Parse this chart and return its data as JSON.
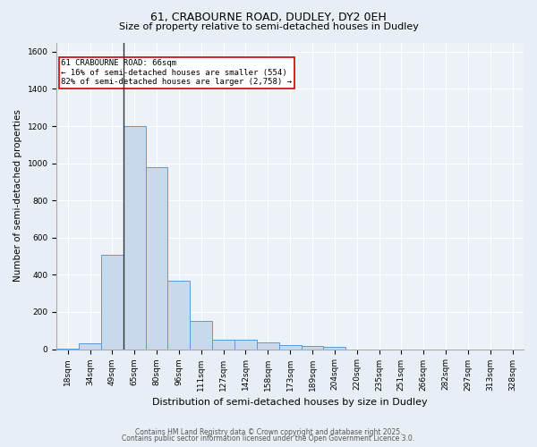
{
  "title1": "61, CRABOURNE ROAD, DUDLEY, DY2 0EH",
  "title2": "Size of property relative to semi-detached houses in Dudley",
  "xlabel": "Distribution of semi-detached houses by size in Dudley",
  "ylabel": "Number of semi-detached properties",
  "categories": [
    "18sqm",
    "34sqm",
    "49sqm",
    "65sqm",
    "80sqm",
    "96sqm",
    "111sqm",
    "127sqm",
    "142sqm",
    "158sqm",
    "173sqm",
    "189sqm",
    "204sqm",
    "220sqm",
    "235sqm",
    "251sqm",
    "266sqm",
    "282sqm",
    "297sqm",
    "313sqm",
    "328sqm"
  ],
  "values": [
    5,
    30,
    510,
    1200,
    980,
    370,
    150,
    50,
    50,
    35,
    20,
    15,
    10,
    0,
    0,
    0,
    0,
    0,
    0,
    0,
    0
  ],
  "bar_color": "#c9d9ec",
  "bar_edge_color": "#5b9bd5",
  "vline_color": "#333333",
  "vline_x_index": 3,
  "annotation_box_facecolor": "#ffffff",
  "annotation_box_edgecolor": "#cc0000",
  "annotation_title": "61 CRABOURNE ROAD: 66sqm",
  "annotation_line1": "← 16% of semi-detached houses are smaller (554)",
  "annotation_line2": "82% of semi-detached houses are larger (2,758) →",
  "ylim_max": 1650,
  "yticks": [
    0,
    200,
    400,
    600,
    800,
    1000,
    1200,
    1400,
    1600
  ],
  "footer1": "Contains HM Land Registry data © Crown copyright and database right 2025.",
  "footer2": "Contains public sector information licensed under the Open Government Licence 3.0.",
  "fig_facecolor": "#e8eef5",
  "plot_facecolor": "#edf2f8",
  "grid_color": "#ffffff",
  "title1_fontsize": 9,
  "title2_fontsize": 8,
  "xlabel_fontsize": 8,
  "ylabel_fontsize": 7.5,
  "tick_fontsize": 6.5,
  "ann_fontsize": 6.5,
  "footer_fontsize": 5.5
}
